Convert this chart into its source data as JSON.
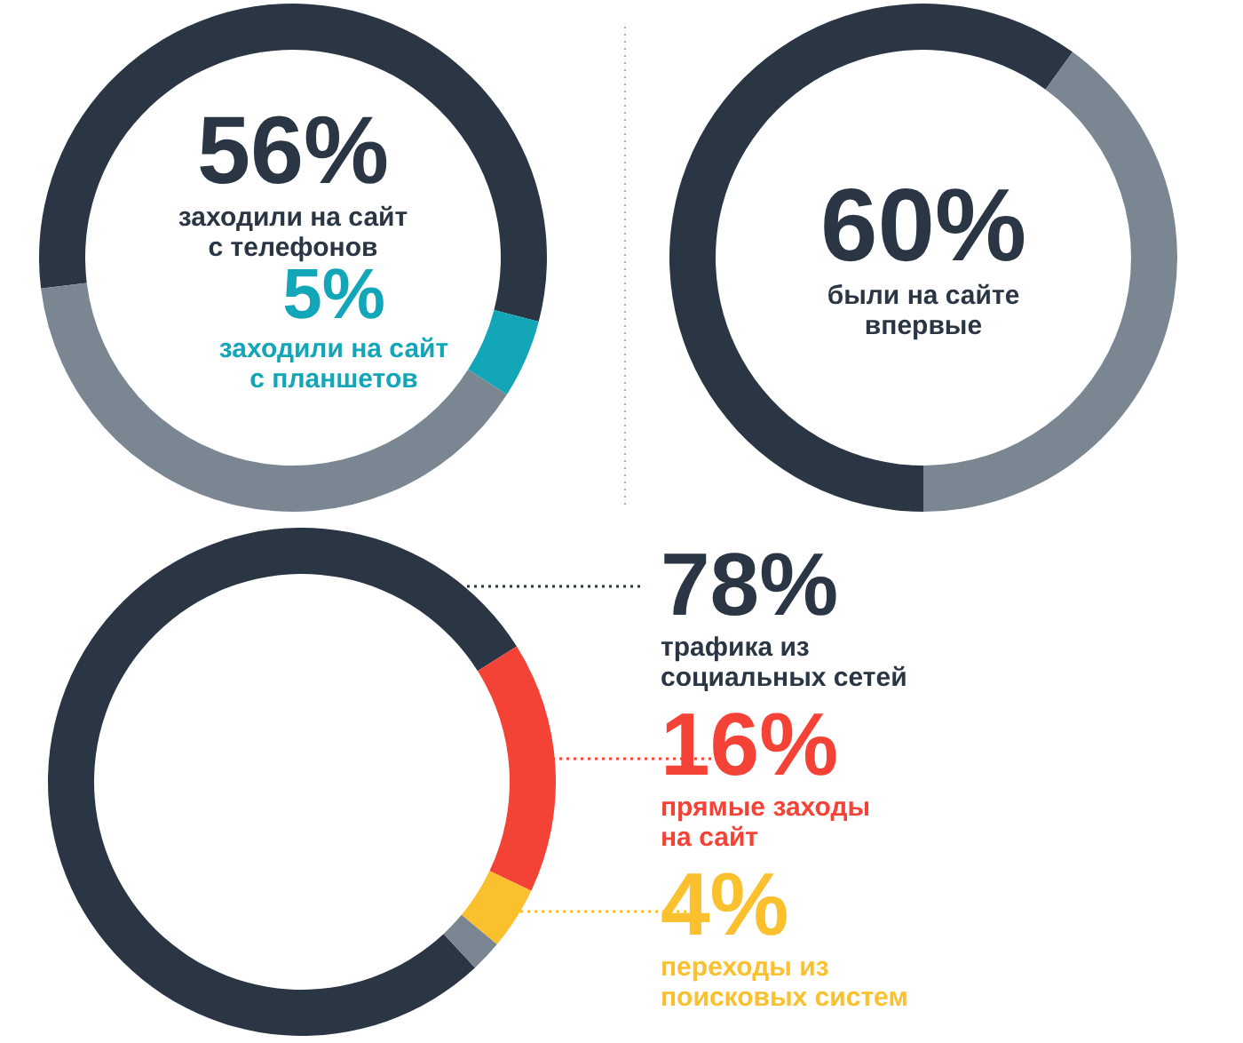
{
  "chart_data": [
    {
      "type": "donut",
      "categories": [
        "заходили на сайт с телефонов",
        "заходили на сайт с планшетов",
        null
      ],
      "values": [
        56,
        5,
        39
      ],
      "colors": [
        "#2b3645",
        "#12a6b8",
        "#7a8793"
      ],
      "value_labels": [
        "56%",
        "5%",
        null
      ]
    },
    {
      "type": "donut",
      "categories": [
        "были на сайте впервые",
        null
      ],
      "values": [
        60,
        40
      ],
      "colors": [
        "#2b3645",
        "#7a8793"
      ],
      "value_labels": [
        "60%",
        null
      ]
    },
    {
      "type": "donut",
      "categories": [
        "трафика из социальных сетей",
        "прямые заходы на сайт",
        "переходы из поисковых систем",
        null
      ],
      "values": [
        78,
        16,
        4,
        2
      ],
      "colors": [
        "#2b3645",
        "#f44336",
        "#fbc02d",
        "#7a8793"
      ],
      "value_labels": [
        "78%",
        "16%",
        "4%",
        null
      ]
    }
  ]
}
